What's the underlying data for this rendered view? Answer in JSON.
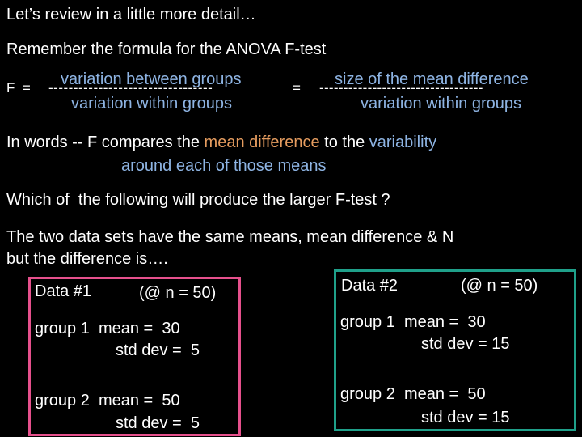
{
  "slide": {
    "title": "Let’s review in a little more detail…",
    "intro": "Remember the formula for the ANOVA F-test",
    "formula": {
      "lhs": "F  =",
      "left": {
        "numerator": "variation between groups",
        "bar": "---------------------------------",
        "denominator": "variation within groups"
      },
      "equals": "=",
      "right": {
        "numerator": "size of the mean difference",
        "bar": "----------------------------------",
        "denominator": "variation within groups"
      }
    },
    "words": {
      "lead": "In words -- F compares the",
      "term1": "mean difference",
      "mid": "to the",
      "term2": "variability",
      "line2": "around each of those means"
    },
    "question": "Which of  the following will produce the larger F-test ?",
    "setup": [
      "The two data sets have the same means, mean difference & N",
      "but the difference is…."
    ],
    "datasets": [
      {
        "label": "Data #1",
        "n": "(@ n = 50)",
        "groups": [
          {
            "mean": "group 1  mean =  30",
            "sd": "std dev =  5"
          },
          {
            "mean": "group 2  mean =  50",
            "sd": "std dev =  5"
          }
        ]
      },
      {
        "label": "Data #2",
        "n": "(@ n = 50)",
        "groups": [
          {
            "mean": "group 1  mean =  30",
            "sd": "std dev = 15"
          },
          {
            "mean": "group 2  mean =  50",
            "sd": "std dev = 15"
          }
        ]
      }
    ]
  }
}
